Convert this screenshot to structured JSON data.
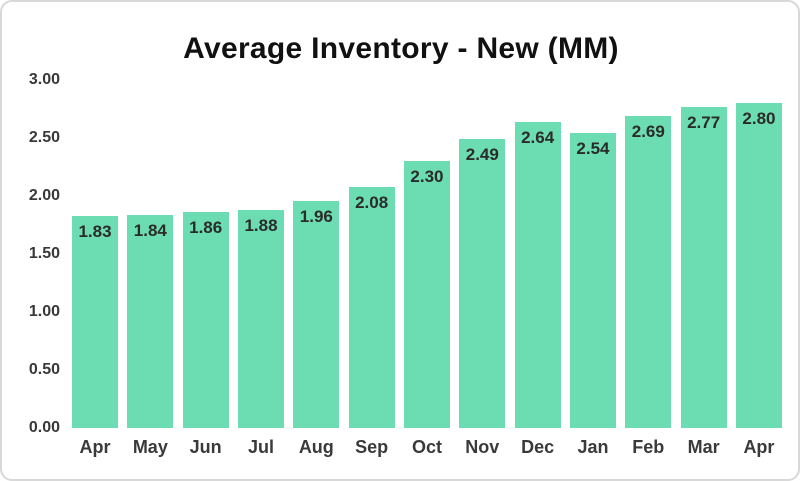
{
  "chart_data": {
    "type": "bar",
    "title": "Average Inventory - New (MM)",
    "categories": [
      "Apr",
      "May",
      "Jun",
      "Jul",
      "Aug",
      "Sep",
      "Oct",
      "Nov",
      "Dec",
      "Jan",
      "Feb",
      "Mar",
      "Apr"
    ],
    "values": [
      1.83,
      1.84,
      1.86,
      1.88,
      1.96,
      2.08,
      2.3,
      2.49,
      2.64,
      2.54,
      2.69,
      2.77,
      2.8
    ],
    "value_labels": [
      "1.83",
      "1.84",
      "1.86",
      "1.88",
      "1.96",
      "2.08",
      "2.30",
      "2.49",
      "2.64",
      "2.54",
      "2.69",
      "2.77",
      "2.80"
    ],
    "xlabel": "",
    "ylabel": "",
    "ylim": [
      0,
      3.0
    ],
    "yticks": [
      "0.00",
      "0.50",
      "1.00",
      "1.50",
      "2.00",
      "2.50",
      "3.00"
    ],
    "grid": false,
    "legend_position": "none",
    "bar_color": "#6cdcb2",
    "value_label_color": "#2b2b2b",
    "title_color": "#111111"
  }
}
